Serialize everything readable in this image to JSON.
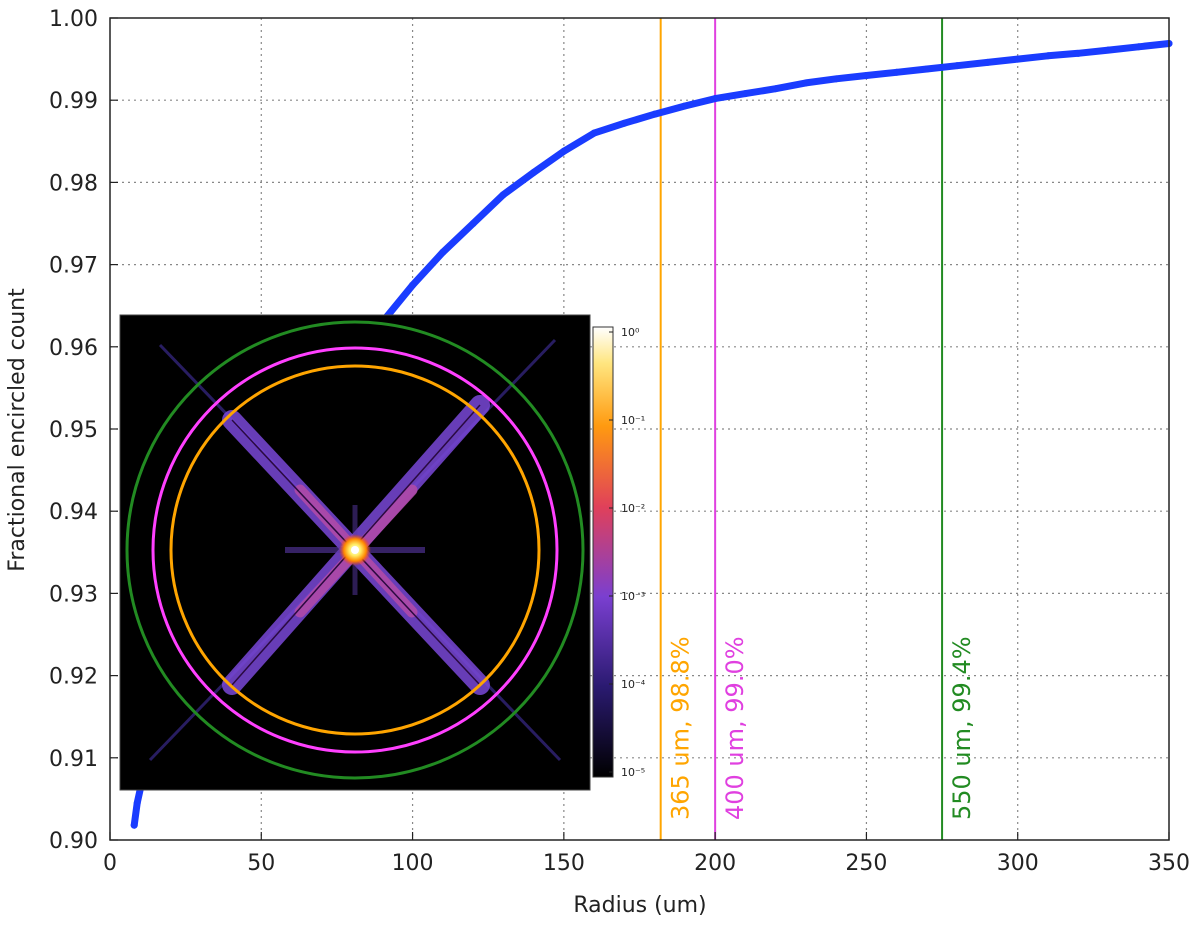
{
  "chart_data": {
    "type": "scatter",
    "xlabel": "Radius (um)",
    "ylabel": "Fractional encircled count",
    "xlim": [
      0,
      350
    ],
    "ylim": [
      0.9,
      1.0
    ],
    "grid": true,
    "x_ticks": [
      "0",
      "50",
      "100",
      "150",
      "200",
      "250",
      "300",
      "350"
    ],
    "y_ticks": [
      "0.90",
      "0.91",
      "0.92",
      "0.93",
      "0.94",
      "0.95",
      "0.96",
      "0.97",
      "0.98",
      "0.99",
      "1.00"
    ],
    "series": [
      {
        "color": "#1a3cff",
        "x": [
          8,
          9,
          10,
          11,
          12,
          14,
          16,
          20,
          25,
          30,
          40,
          50,
          60,
          70,
          80,
          90,
          100,
          110,
          120,
          130,
          140,
          150,
          160,
          170,
          180,
          190,
          200,
          210,
          220,
          230,
          240,
          250,
          260,
          270,
          280,
          290,
          300,
          310,
          320,
          330,
          340,
          350
        ],
        "y": [
          0.9018,
          0.9045,
          0.9062,
          0.9075,
          0.9088,
          0.911,
          0.913,
          0.917,
          0.922,
          0.927,
          0.935,
          0.942,
          0.948,
          0.9535,
          0.9585,
          0.963,
          0.9675,
          0.9715,
          0.975,
          0.9785,
          0.9812,
          0.9838,
          0.986,
          0.9872,
          0.9883,
          0.9893,
          0.9902,
          0.9908,
          0.9914,
          0.9921,
          0.9926,
          0.993,
          0.9934,
          0.9938,
          0.9942,
          0.9946,
          0.995,
          0.9954,
          0.9957,
          0.9961,
          0.9965,
          0.9969
        ]
      }
    ],
    "vlines": [
      {
        "x": 182,
        "label": "365 um, 98.8%",
        "color": "#ffa500"
      },
      {
        "x": 200,
        "label": "400 um, 99.0%",
        "color": "#e040e0"
      },
      {
        "x": 275,
        "label": "550 um, 99.4%",
        "color": "#228b22"
      }
    ],
    "inset": {
      "colorbar_labels": [
        "10⁰",
        "10⁻¹",
        "10⁻²",
        "10⁻³",
        "10⁻⁴",
        "10⁻⁵"
      ],
      "ring_colors": [
        "#ffa500",
        "#ff40ff",
        "#228b22"
      ]
    }
  }
}
